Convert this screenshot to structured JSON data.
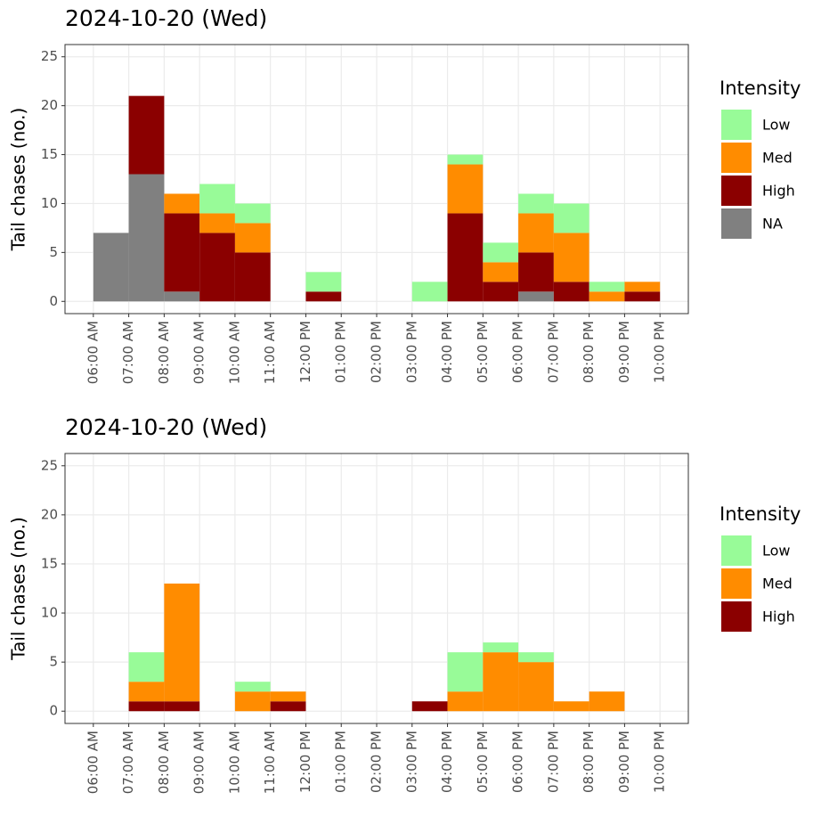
{
  "chart_data": [
    {
      "type": "histogram",
      "title": "2024-10-20 (Wed)",
      "y_label": "Tail chases (no.)",
      "legend_title": "Intensity",
      "stacked": true,
      "grid": true,
      "bins": [
        6,
        7,
        8,
        9,
        10,
        11,
        12,
        13,
        14,
        15,
        16,
        17,
        18,
        19,
        20,
        21,
        22
      ],
      "series": [
        {
          "name": "Low",
          "color": "#98fb98",
          "values": [
            0,
            0,
            0,
            3,
            2,
            0,
            2,
            0,
            0,
            2,
            1,
            2,
            2,
            3,
            1,
            0
          ]
        },
        {
          "name": "Med",
          "color": "#ff8c00",
          "values": [
            0,
            0,
            2,
            2,
            3,
            0,
            0,
            0,
            0,
            0,
            5,
            2,
            4,
            5,
            1,
            1
          ]
        },
        {
          "name": "High",
          "color": "#8b0000",
          "values": [
            0,
            8,
            8,
            7,
            5,
            0,
            1,
            0,
            0,
            0,
            9,
            2,
            4,
            2,
            0,
            1
          ]
        },
        {
          "name": "NA",
          "color": "#808080",
          "values": [
            7,
            13,
            1,
            0,
            0,
            0,
            0,
            0,
            0,
            0,
            0,
            0,
            1,
            0,
            0,
            0
          ]
        }
      ],
      "xlim": [
        5.2,
        22.8
      ],
      "ylim": [
        -1.25,
        26.25
      ],
      "yticks": [
        0,
        5,
        10,
        15,
        20,
        25
      ],
      "xticks": [
        {
          "value": 6,
          "label": "06:00 AM"
        },
        {
          "value": 7,
          "label": "07:00 AM"
        },
        {
          "value": 8,
          "label": "08:00 AM"
        },
        {
          "value": 9,
          "label": "09:00 AM"
        },
        {
          "value": 10,
          "label": "10:00 AM"
        },
        {
          "value": 11,
          "label": "11:00 AM"
        },
        {
          "value": 12,
          "label": "12:00 PM"
        },
        {
          "value": 13,
          "label": "01:00 PM"
        },
        {
          "value": 14,
          "label": "02:00 PM"
        },
        {
          "value": 15,
          "label": "03:00 PM"
        },
        {
          "value": 16,
          "label": "04:00 PM"
        },
        {
          "value": 17,
          "label": "05:00 PM"
        },
        {
          "value": 18,
          "label": "06:00 PM"
        },
        {
          "value": 19,
          "label": "07:00 PM"
        },
        {
          "value": 20,
          "label": "08:00 PM"
        },
        {
          "value": 21,
          "label": "09:00 PM"
        },
        {
          "value": 22,
          "label": "10:00 PM"
        }
      ]
    },
    {
      "type": "histogram",
      "title": "2024-10-20 (Wed)",
      "y_label": "Tail chases (no.)",
      "legend_title": "Intensity",
      "stacked": true,
      "grid": true,
      "bins": [
        6,
        7,
        8,
        9,
        10,
        11,
        12,
        13,
        14,
        15,
        16,
        17,
        18,
        19,
        20,
        21,
        22
      ],
      "series": [
        {
          "name": "Low",
          "color": "#98fb98",
          "values": [
            0,
            3,
            0,
            0,
            1,
            0,
            0,
            0,
            0,
            0,
            4,
            1,
            1,
            0,
            0,
            0
          ]
        },
        {
          "name": "Med",
          "color": "#ff8c00",
          "values": [
            0,
            2,
            12,
            0,
            2,
            1,
            0,
            0,
            0,
            0,
            2,
            6,
            5,
            1,
            2,
            0
          ]
        },
        {
          "name": "High",
          "color": "#8b0000",
          "values": [
            0,
            1,
            1,
            0,
            0,
            1,
            0,
            0,
            0,
            1,
            0,
            0,
            0,
            0,
            0,
            0
          ]
        }
      ],
      "xlim": [
        5.2,
        22.8
      ],
      "ylim": [
        -1.25,
        26.25
      ],
      "yticks": [
        0,
        5,
        10,
        15,
        20,
        25
      ],
      "xticks": [
        {
          "value": 6,
          "label": "06:00 AM"
        },
        {
          "value": 7,
          "label": "07:00 AM"
        },
        {
          "value": 8,
          "label": "08:00 AM"
        },
        {
          "value": 9,
          "label": "09:00 AM"
        },
        {
          "value": 10,
          "label": "10:00 AM"
        },
        {
          "value": 11,
          "label": "11:00 AM"
        },
        {
          "value": 12,
          "label": "12:00 PM"
        },
        {
          "value": 13,
          "label": "01:00 PM"
        },
        {
          "value": 14,
          "label": "02:00 PM"
        },
        {
          "value": 15,
          "label": "03:00 PM"
        },
        {
          "value": 16,
          "label": "04:00 PM"
        },
        {
          "value": 17,
          "label": "05:00 PM"
        },
        {
          "value": 18,
          "label": "06:00 PM"
        },
        {
          "value": 19,
          "label": "07:00 PM"
        },
        {
          "value": 20,
          "label": "08:00 PM"
        },
        {
          "value": 21,
          "label": "09:00 PM"
        },
        {
          "value": 22,
          "label": "10:00 PM"
        }
      ]
    }
  ]
}
